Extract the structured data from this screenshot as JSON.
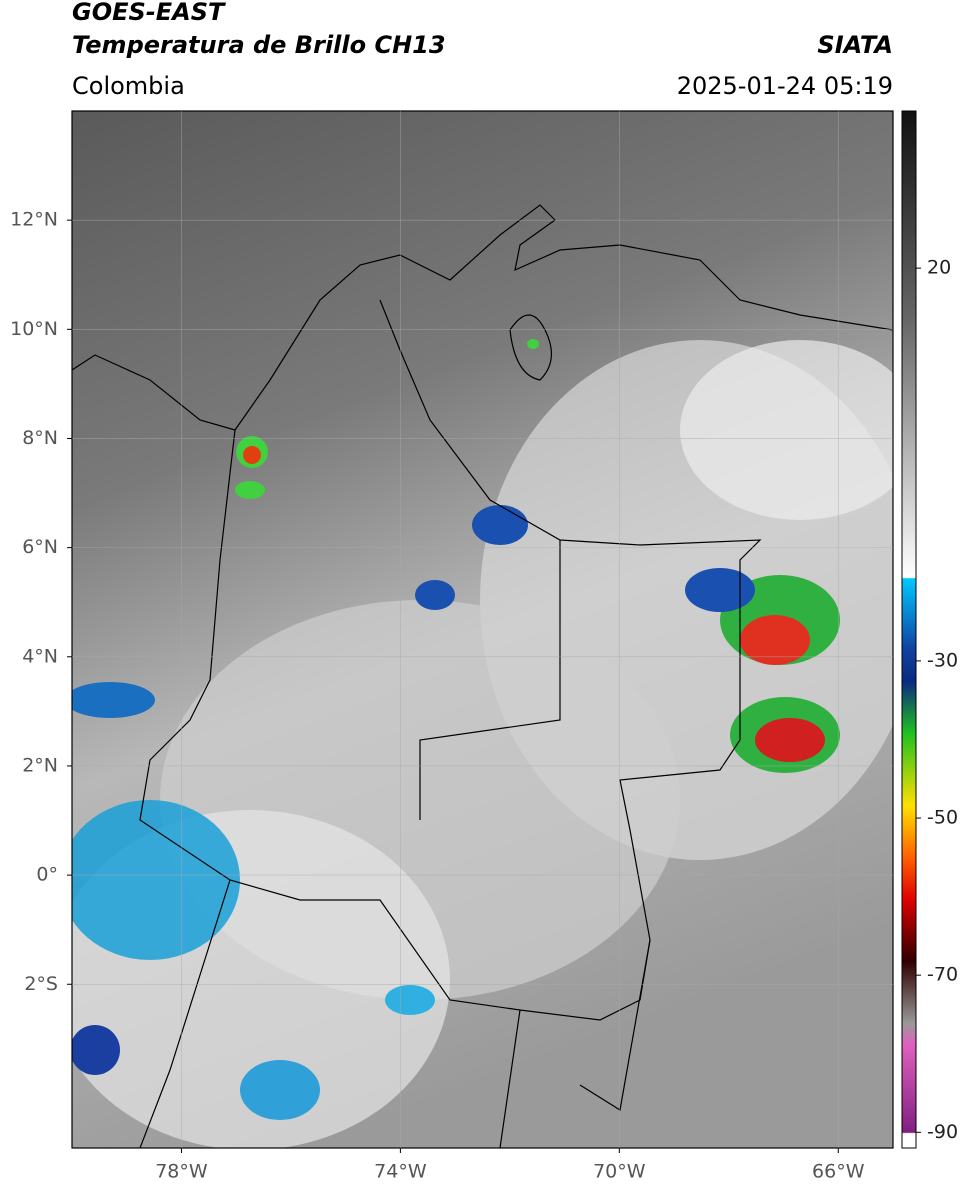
{
  "header": {
    "title": "GOES-EAST",
    "subtitle": "Temperatura de Brillo CH13",
    "region": "Colombia",
    "source": "SIATA",
    "datetime": "2025-01-24 05:19"
  },
  "map": {
    "xlim": [
      -80,
      -65
    ],
    "ylim": [
      -5,
      14
    ],
    "xticks": [
      {
        "value": -78,
        "label": "78°W"
      },
      {
        "value": -74,
        "label": "74°W"
      },
      {
        "value": -70,
        "label": "70°W"
      },
      {
        "value": -66,
        "label": "66°W"
      }
    ],
    "yticks": [
      {
        "value": 12,
        "label": "12°N"
      },
      {
        "value": 10,
        "label": "10°N"
      },
      {
        "value": 8,
        "label": "8°N"
      },
      {
        "value": 6,
        "label": "6°N"
      },
      {
        "value": 4,
        "label": "4°N"
      },
      {
        "value": 2,
        "label": "2°N"
      },
      {
        "value": 0,
        "label": "0°"
      },
      {
        "value": -2,
        "label": "2°S"
      }
    ],
    "grid": true
  },
  "colorbar": {
    "lim": [
      -92,
      40
    ],
    "ticks": [
      20,
      -30,
      -50,
      -70,
      -90
    ]
  }
}
